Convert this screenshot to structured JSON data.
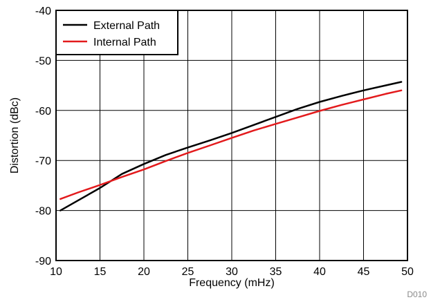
{
  "chart_data": {
    "type": "line",
    "title": "",
    "xlabel": "Frequency (mHz)",
    "ylabel": "Distortion (dBc)",
    "xlim": [
      10,
      50
    ],
    "ylim": [
      -90,
      -40
    ],
    "x_ticks": [
      10,
      15,
      20,
      25,
      30,
      35,
      40,
      45,
      50
    ],
    "y_ticks": [
      -40,
      -50,
      -60,
      -70,
      -80,
      -90
    ],
    "grid": true,
    "legend_position": "top-left",
    "figure_id": "D010",
    "series": [
      {
        "name": "External Path",
        "color": "#000000",
        "x": [
          10.5,
          12.5,
          15,
          17.5,
          20,
          22.5,
          25,
          27.5,
          30,
          32.5,
          35,
          37.5,
          40,
          42.5,
          45,
          47.5,
          49.3
        ],
        "y": [
          -80.0,
          -78.0,
          -75.5,
          -72.7,
          -70.7,
          -68.9,
          -67.4,
          -66.0,
          -64.5,
          -62.9,
          -61.3,
          -59.7,
          -58.3,
          -57.1,
          -56.0,
          -55.0,
          -54.3
        ]
      },
      {
        "name": "Internal Path",
        "color": "#e31a1c",
        "x": [
          10.5,
          12.5,
          15,
          17.5,
          20,
          22.5,
          25,
          27.5,
          30,
          32.5,
          35,
          37.5,
          40,
          42.5,
          45,
          47.5,
          49.3
        ],
        "y": [
          -77.7,
          -76.4,
          -74.9,
          -73.3,
          -71.8,
          -70.1,
          -68.5,
          -67.0,
          -65.5,
          -64.0,
          -62.7,
          -61.4,
          -60.1,
          -58.9,
          -57.8,
          -56.7,
          -56.0
        ]
      }
    ]
  }
}
